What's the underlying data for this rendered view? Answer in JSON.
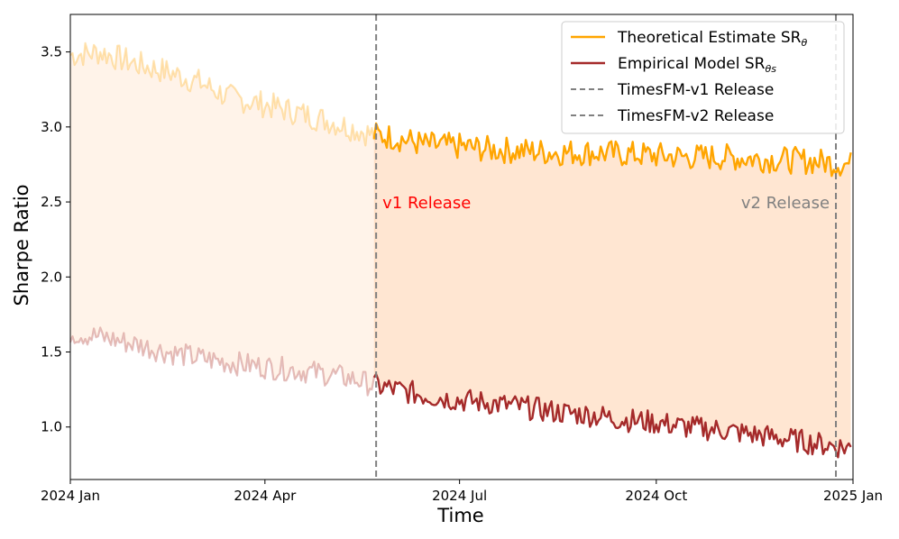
{
  "chart_data": {
    "type": "line",
    "title": "",
    "xlabel": "Time",
    "ylabel": "Sharpe Ratio",
    "xlim": [
      "2024-01-01",
      "2025-01-01"
    ],
    "ylim": [
      0.65,
      3.75
    ],
    "x_ticks": [
      {
        "date": "2024-01-01",
        "label": "2024 Jan"
      },
      {
        "date": "2024-04-01",
        "label": "2024 Apr"
      },
      {
        "date": "2024-07-01",
        "label": "2024 Jul"
      },
      {
        "date": "2024-10-01",
        "label": "2024 Oct"
      },
      {
        "date": "2025-01-01",
        "label": "2025 Jan"
      }
    ],
    "y_ticks": [
      1.0,
      1.5,
      2.0,
      2.5,
      3.0,
      3.5
    ],
    "y_tick_labels": [
      "1.0",
      "1.5",
      "2.0",
      "2.5",
      "3.0",
      "3.5"
    ],
    "grid": false,
    "legend_position": "top-right",
    "series": [
      {
        "name": "Theoretical Estimate SR_θ",
        "legend_base": "Theoretical Estimate SR",
        "legend_sub": "θ",
        "color": "#ffa500",
        "faded_before_release": true,
        "x": [
          "2024-01-01",
          "2024-01-15",
          "2024-02-01",
          "2024-02-15",
          "2024-03-01",
          "2024-03-15",
          "2024-04-01",
          "2024-04-15",
          "2024-05-01",
          "2024-05-15",
          "2024-05-21",
          "2024-06-01",
          "2024-06-15",
          "2024-07-01",
          "2024-07-15",
          "2024-08-01",
          "2024-08-15",
          "2024-09-01",
          "2024-09-15",
          "2024-10-01",
          "2024-10-15",
          "2024-11-01",
          "2024-11-15",
          "2024-12-01",
          "2024-12-15",
          "2024-12-31"
        ],
        "y": [
          3.48,
          3.5,
          3.42,
          3.37,
          3.3,
          3.2,
          3.15,
          3.1,
          3.04,
          2.98,
          2.95,
          2.93,
          2.88,
          2.87,
          2.85,
          2.84,
          2.83,
          2.83,
          2.82,
          2.81,
          2.8,
          2.8,
          2.79,
          2.78,
          2.77,
          2.75
        ]
      },
      {
        "name": "Empirical Model SR_θs",
        "legend_base": "Empirical Model SR",
        "legend_sub": "θs",
        "color": "#a52a2a",
        "faded_before_release": true,
        "x": [
          "2024-01-01",
          "2024-01-15",
          "2024-02-01",
          "2024-02-15",
          "2024-03-01",
          "2024-03-15",
          "2024-04-01",
          "2024-04-15",
          "2024-05-01",
          "2024-05-15",
          "2024-05-21",
          "2024-06-01",
          "2024-06-15",
          "2024-07-01",
          "2024-07-15",
          "2024-08-01",
          "2024-08-15",
          "2024-09-01",
          "2024-09-15",
          "2024-10-01",
          "2024-10-15",
          "2024-11-01",
          "2024-11-15",
          "2024-12-01",
          "2024-12-15",
          "2024-12-31"
        ],
        "y": [
          1.63,
          1.6,
          1.55,
          1.5,
          1.46,
          1.43,
          1.4,
          1.38,
          1.35,
          1.31,
          1.28,
          1.25,
          1.21,
          1.18,
          1.16,
          1.13,
          1.1,
          1.08,
          1.05,
          1.03,
          1.0,
          0.98,
          0.95,
          0.92,
          0.89,
          0.86
        ]
      }
    ],
    "vertical_lines": [
      {
        "name": "TimesFM-v1 Release",
        "date": "2024-05-23",
        "annotation": "v1 Release",
        "annotation_color": "#ff0000",
        "line_color": "#808080"
      },
      {
        "name": "TimesFM-v2 Release",
        "date": "2024-12-24",
        "annotation": "v2 Release",
        "annotation_color": "#808080",
        "line_color": "#808080"
      }
    ],
    "fill_between": {
      "color": "#ffc89b",
      "faded_before_release": true
    }
  }
}
